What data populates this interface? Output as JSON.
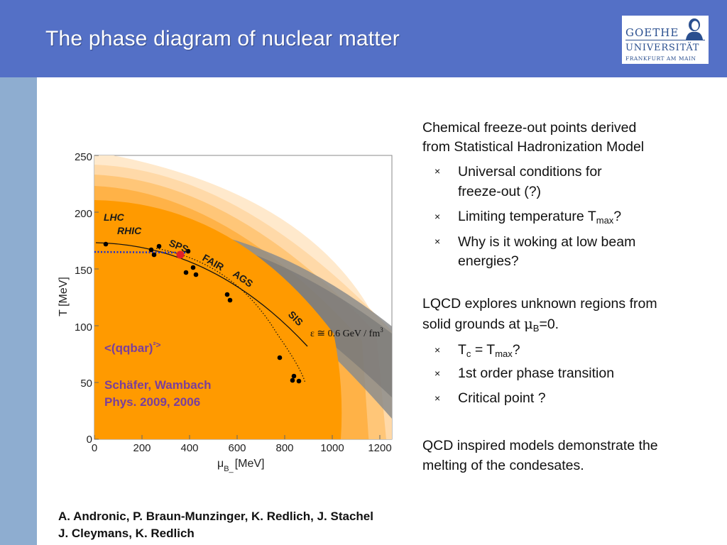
{
  "slide": {
    "title": "The phase diagram of nuclear matter",
    "logo": {
      "line1": "GOETHE",
      "line2": "UNIVERSITÄT",
      "line3": "FRANKFURT AM MAIN"
    }
  },
  "colors": {
    "header": "#5470c6",
    "left_bar": "#8eadd0",
    "phase_region": "#ff9a00",
    "band": "#808080",
    "logo_text": "#2a4f8f"
  },
  "figure": {
    "xlabel": "μ",
    "xlabel_sub": "B_",
    "xlabel_unit": "[MeV]",
    "ylabel": "T [MeV]",
    "x_ticks": [
      "0",
      "200",
      "400",
      "600",
      "800",
      "1000",
      "1200"
    ],
    "y_ticks": [
      "0",
      "50",
      "100",
      "150",
      "200",
      "250"
    ],
    "labels": {
      "lhc": "LHC",
      "rhic": "RHIC",
      "sps": "SPS",
      "fair": "FAIR",
      "ags": "AGS",
      "sis": "SIS",
      "energy_density": "ε ≅ 0.6 GeV / fm",
      "energy_density_sup": "3",
      "condensate_a": "<(qqbar)",
      "condensate_b": "²>",
      "authors": "Schäfer, Wambach",
      "journal": "Phys. 2009, 2006"
    }
  },
  "right_text": {
    "para1_line1": "Chemical freeze-out points derived",
    "para1_line2": "from Statistical Hadronization Model",
    "bullets1": {
      "b1_line1": "Universal conditions for",
      "b1_line2": "freeze-out (?)",
      "b2_text": "Limiting temperature T",
      "b2_sub": "max",
      "b2_end": "?",
      "b3_line1": "Why is it woking at low beam",
      "b3_line2": "energies?"
    },
    "para2_line1": "LQCD explores unknown regions from",
    "para2_line2_a": "solid grounds at ",
    "para2_line2_mu": "μ",
    "para2_line2_sub": "B",
    "para2_line2_b": "=0.",
    "bullets2": {
      "b1_a": "T",
      "b1_sub1": "c",
      "b1_mid": " = T",
      "b1_sub2": "max",
      "b1_end": "?",
      "b2_text": "1st order phase transition",
      "b3_text": "Critical point ?"
    },
    "para3_line1": "QCD inspired models demonstrate the",
    "para3_line2": "melting of the condesates.",
    "bullet_glyph": "×"
  },
  "credits": {
    "line1": "A. Andronic, P. Braun-Munzinger, K. Redlich, J. Stachel",
    "line2": "J. Cleymans, K. Redlich"
  }
}
